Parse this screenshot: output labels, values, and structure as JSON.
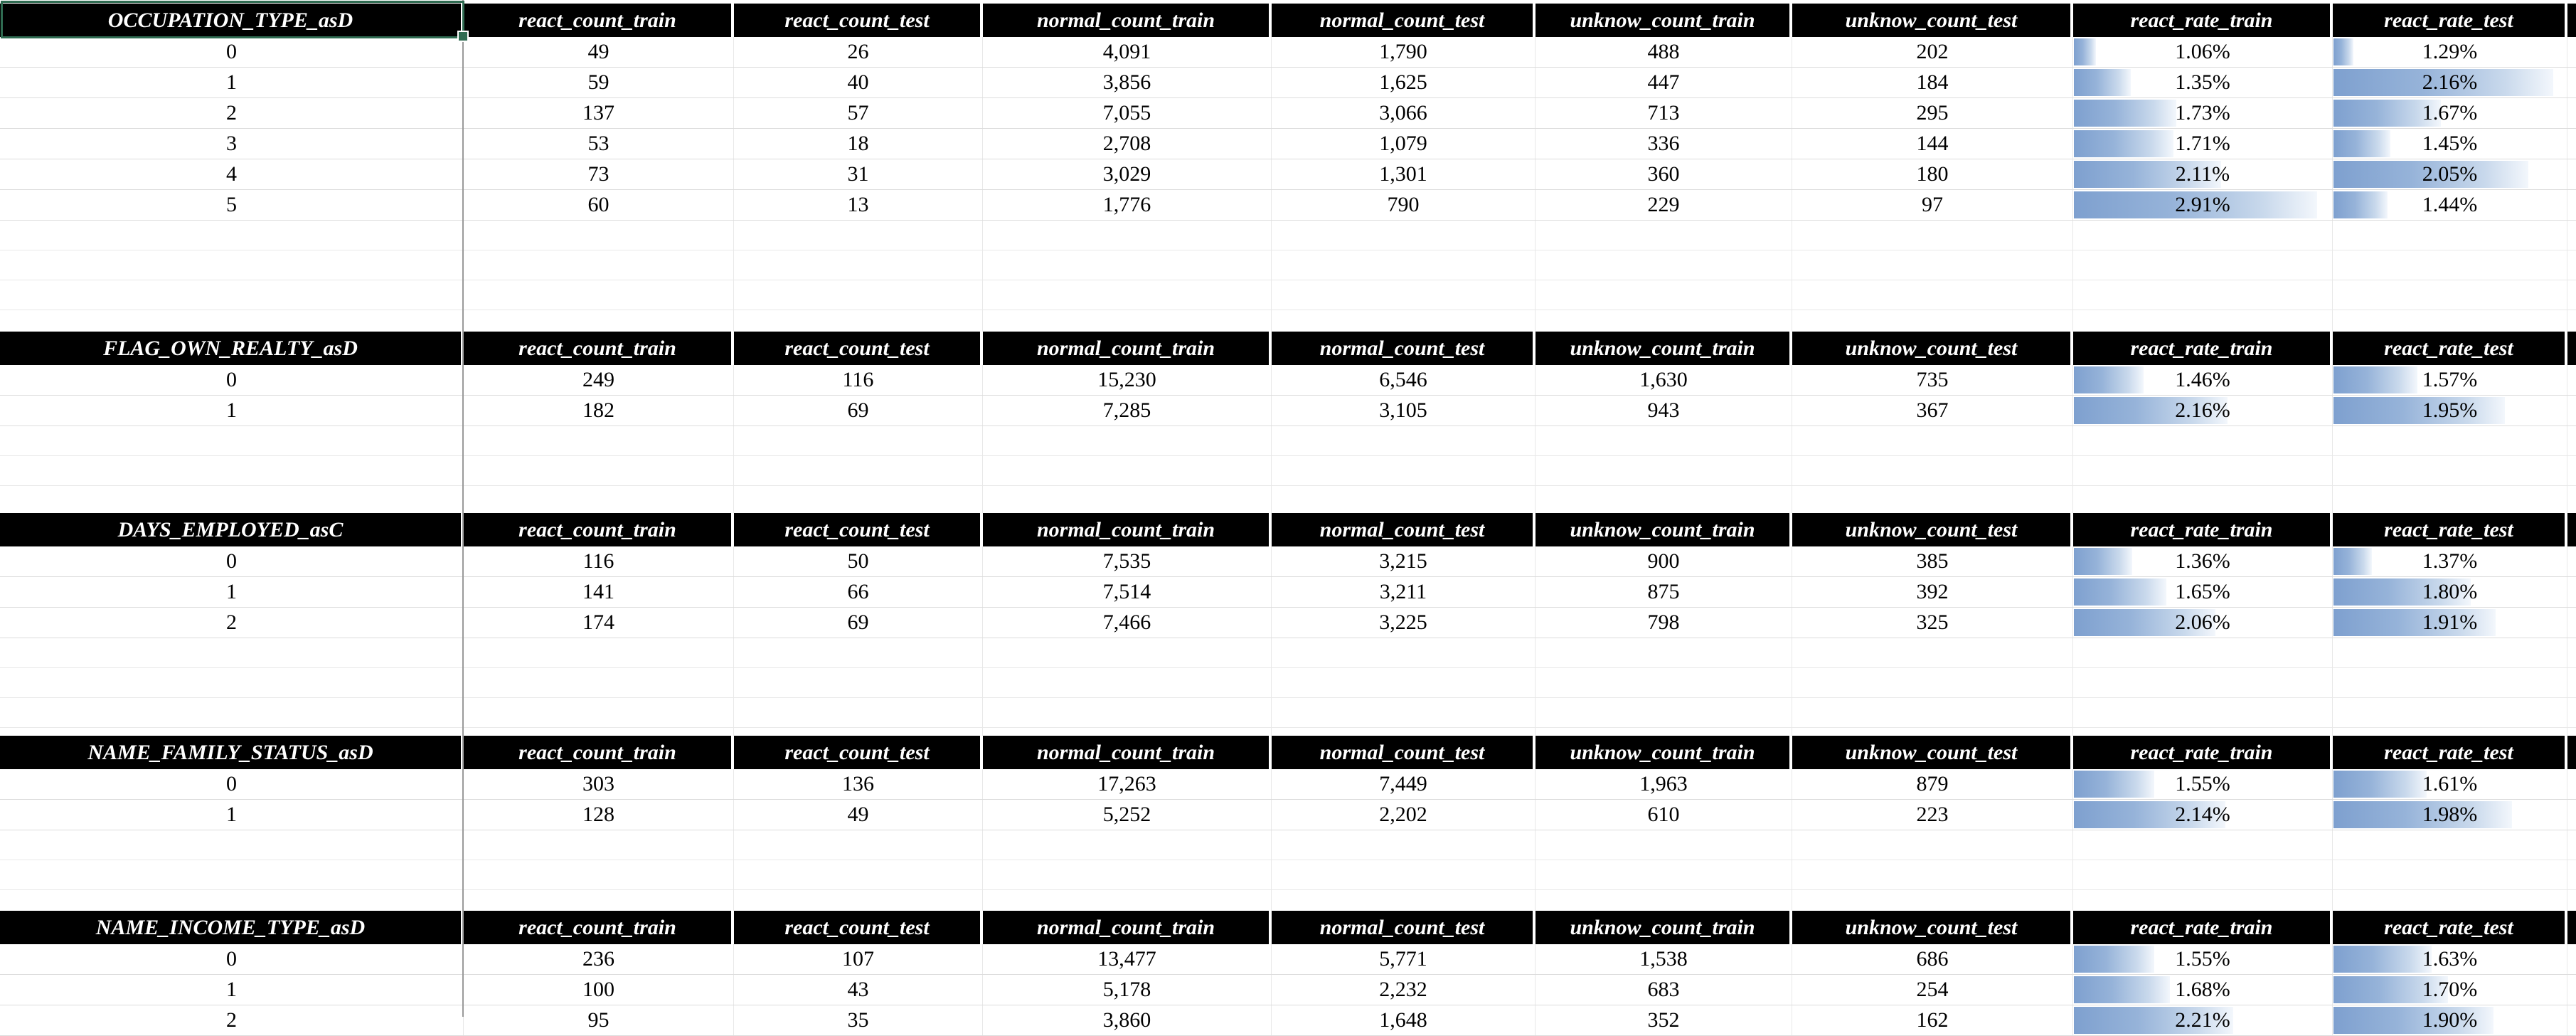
{
  "app": {
    "kind": "spreadsheet-grid"
  },
  "style": {
    "header_bg": "#000000",
    "header_text": "#FFFFFF",
    "grid_line": "#E8E8E8",
    "row_line": "#DCDCDC",
    "freeze_line": "#9A9A9A",
    "selection_border": "#2F6B51",
    "bar_color_left": "#7EA0CF",
    "bar_color_right": "#F3F7FC"
  },
  "columns": [
    "react_count_train",
    "react_count_test",
    "normal_count_train",
    "normal_count_test",
    "unknow_count_train",
    "unknow_count_test",
    "react_rate_train",
    "react_rate_test"
  ],
  "bar_scale": {
    "train": {
      "min": 1.06,
      "max": 2.91,
      "min_pct": 8.5,
      "max_pct": 94
    },
    "test": {
      "min": 1.29,
      "max": 2.16,
      "min_pct": 8.5,
      "max_pct": 94
    }
  },
  "gaps": [
    156,
    122,
    137,
    113
  ],
  "tables": [
    {
      "name": "OCCUPATION_TYPE_asD",
      "selected_header": true,
      "rows": [
        {
          "label": "0",
          "counts": [
            "49",
            "26",
            "4,091",
            "1,790",
            "488",
            "202"
          ],
          "rate_train": {
            "text": "1.06%",
            "value": 1.06
          },
          "rate_test": {
            "text": "1.29%",
            "value": 1.29
          }
        },
        {
          "label": "1",
          "counts": [
            "59",
            "40",
            "3,856",
            "1,625",
            "447",
            "184"
          ],
          "rate_train": {
            "text": "1.35%",
            "value": 1.35
          },
          "rate_test": {
            "text": "2.16%",
            "value": 2.16
          }
        },
        {
          "label": "2",
          "counts": [
            "137",
            "57",
            "7,055",
            "3,066",
            "713",
            "295"
          ],
          "rate_train": {
            "text": "1.73%",
            "value": 1.73
          },
          "rate_test": {
            "text": "1.67%",
            "value": 1.67
          }
        },
        {
          "label": "3",
          "counts": [
            "53",
            "18",
            "2,708",
            "1,079",
            "336",
            "144"
          ],
          "rate_train": {
            "text": "1.71%",
            "value": 1.71
          },
          "rate_test": {
            "text": "1.45%",
            "value": 1.45
          }
        },
        {
          "label": "4",
          "counts": [
            "73",
            "31",
            "3,029",
            "1,301",
            "360",
            "180"
          ],
          "rate_train": {
            "text": "2.11%",
            "value": 2.11
          },
          "rate_test": {
            "text": "2.05%",
            "value": 2.05
          }
        },
        {
          "label": "5",
          "counts": [
            "60",
            "13",
            "1,776",
            "790",
            "229",
            "97"
          ],
          "rate_train": {
            "text": "2.91%",
            "value": 2.91
          },
          "rate_test": {
            "text": "1.44%",
            "value": 1.44
          }
        }
      ]
    },
    {
      "name": "FLAG_OWN_REALTY_asD",
      "selected_header": false,
      "rows": [
        {
          "label": "0",
          "counts": [
            "249",
            "116",
            "15,230",
            "6,546",
            "1,630",
            "735"
          ],
          "rate_train": {
            "text": "1.46%",
            "value": 1.46
          },
          "rate_test": {
            "text": "1.57%",
            "value": 1.57
          }
        },
        {
          "label": "1",
          "counts": [
            "182",
            "69",
            "7,285",
            "3,105",
            "943",
            "367"
          ],
          "rate_train": {
            "text": "2.16%",
            "value": 2.16
          },
          "rate_test": {
            "text": "1.95%",
            "value": 1.95
          }
        }
      ]
    },
    {
      "name": "DAYS_EMPLOYED_asC",
      "selected_header": false,
      "rows": [
        {
          "label": "0",
          "counts": [
            "116",
            "50",
            "7,535",
            "3,215",
            "900",
            "385"
          ],
          "rate_train": {
            "text": "1.36%",
            "value": 1.36
          },
          "rate_test": {
            "text": "1.37%",
            "value": 1.37
          }
        },
        {
          "label": "1",
          "counts": [
            "141",
            "66",
            "7,514",
            "3,211",
            "875",
            "392"
          ],
          "rate_train": {
            "text": "1.65%",
            "value": 1.65
          },
          "rate_test": {
            "text": "1.80%",
            "value": 1.8
          }
        },
        {
          "label": "2",
          "counts": [
            "174",
            "69",
            "7,466",
            "3,225",
            "798",
            "325"
          ],
          "rate_train": {
            "text": "2.06%",
            "value": 2.06
          },
          "rate_test": {
            "text": "1.91%",
            "value": 1.91
          }
        }
      ]
    },
    {
      "name": "NAME_FAMILY_STATUS_asD",
      "selected_header": false,
      "rows": [
        {
          "label": "0",
          "counts": [
            "303",
            "136",
            "17,263",
            "7,449",
            "1,963",
            "879"
          ],
          "rate_train": {
            "text": "1.55%",
            "value": 1.55
          },
          "rate_test": {
            "text": "1.61%",
            "value": 1.61
          }
        },
        {
          "label": "1",
          "counts": [
            "128",
            "49",
            "5,252",
            "2,202",
            "610",
            "223"
          ],
          "rate_train": {
            "text": "2.14%",
            "value": 2.14
          },
          "rate_test": {
            "text": "1.98%",
            "value": 1.98
          }
        }
      ]
    },
    {
      "name": "NAME_INCOME_TYPE_asD",
      "selected_header": false,
      "rows": [
        {
          "label": "0",
          "counts": [
            "236",
            "107",
            "13,477",
            "5,771",
            "1,538",
            "686"
          ],
          "rate_train": {
            "text": "1.55%",
            "value": 1.55
          },
          "rate_test": {
            "text": "1.63%",
            "value": 1.63
          }
        },
        {
          "label": "1",
          "counts": [
            "100",
            "43",
            "5,178",
            "2,232",
            "683",
            "254"
          ],
          "rate_train": {
            "text": "1.68%",
            "value": 1.68
          },
          "rate_test": {
            "text": "1.70%",
            "value": 1.7
          }
        },
        {
          "label": "2",
          "counts": [
            "95",
            "35",
            "3,860",
            "1,648",
            "352",
            "162"
          ],
          "rate_train": {
            "text": "2.21%",
            "value": 2.21
          },
          "rate_test": {
            "text": "1.90%",
            "value": 1.9
          }
        }
      ]
    }
  ]
}
